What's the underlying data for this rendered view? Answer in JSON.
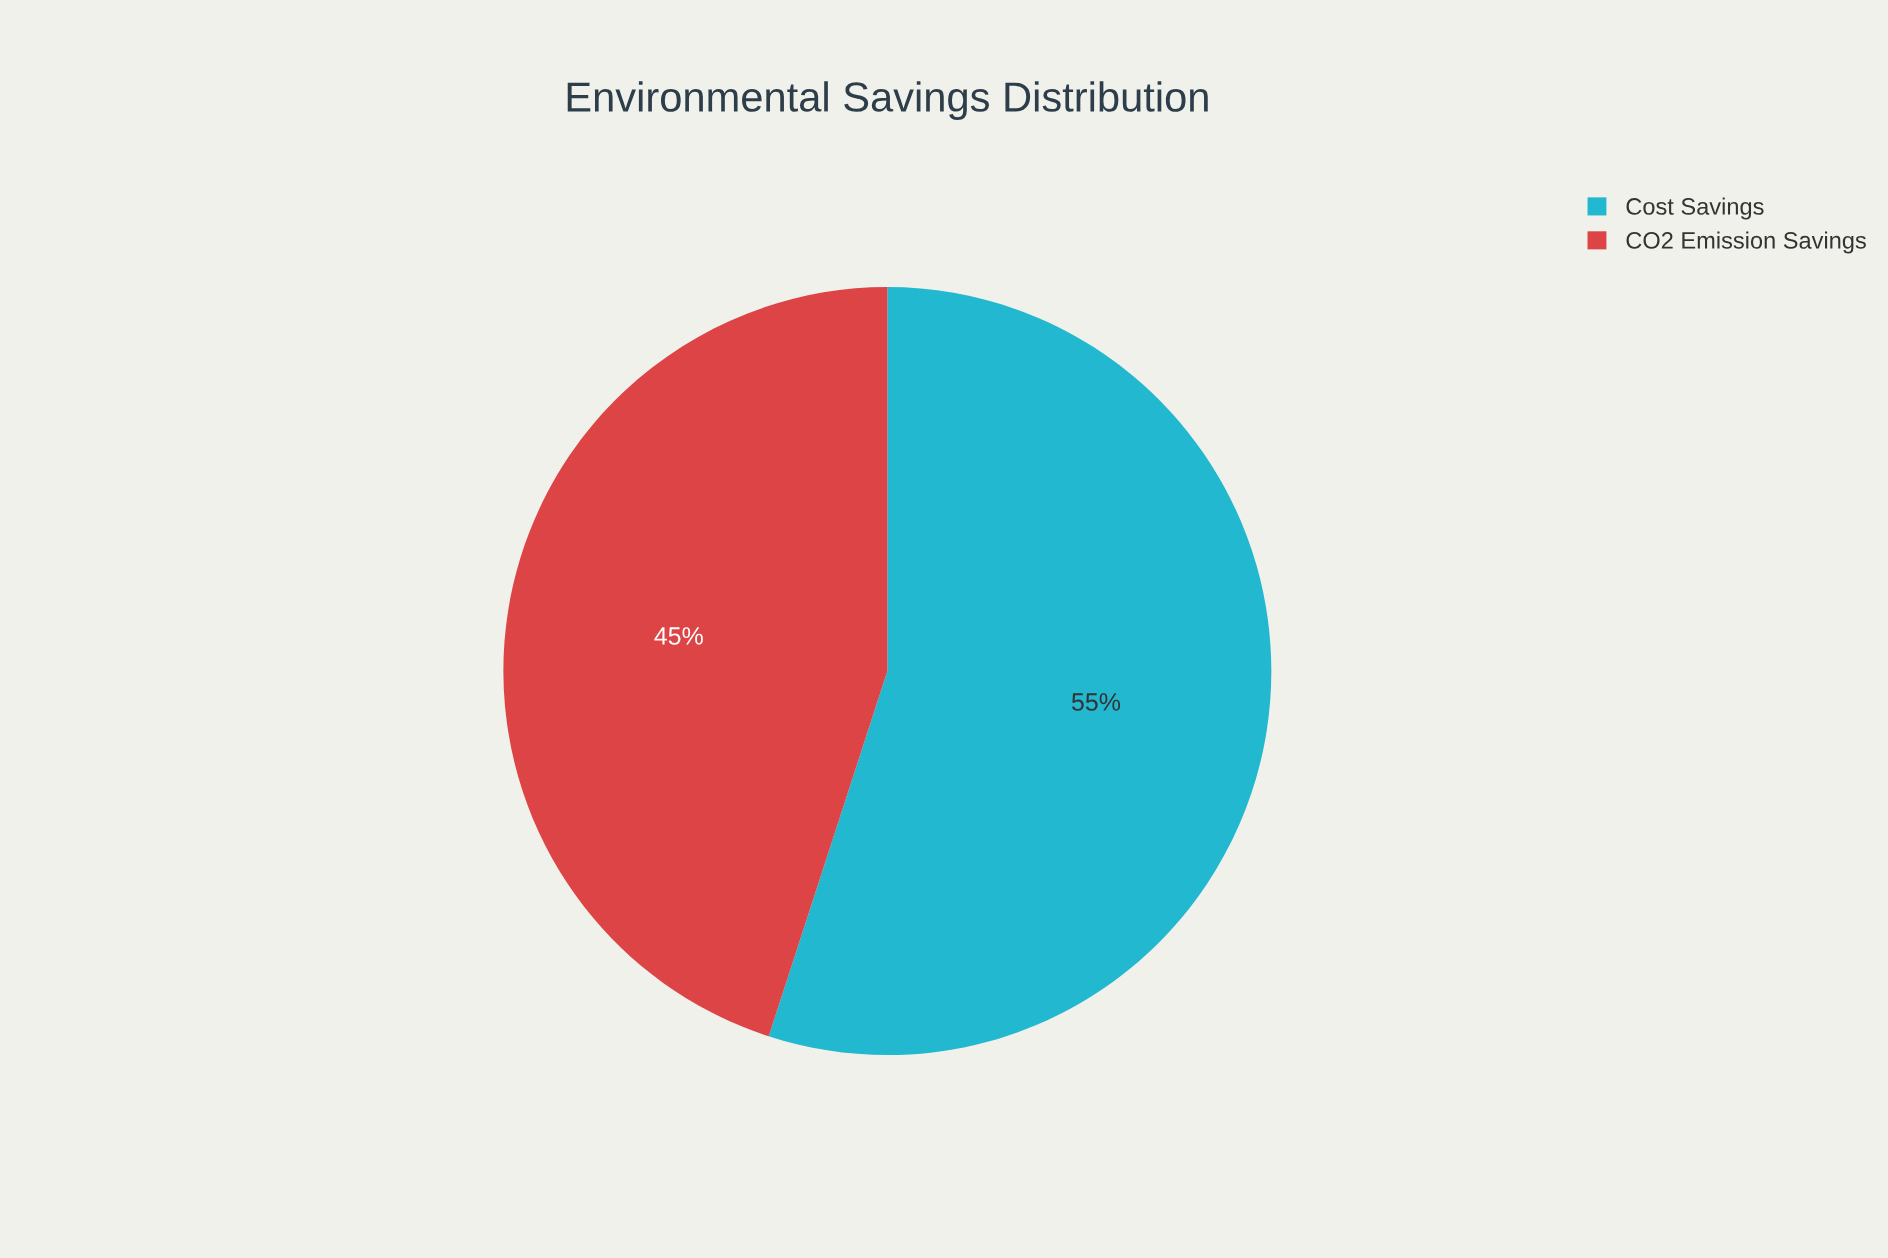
{
  "chart_data": {
    "type": "pie",
    "title": "Environmental Savings Distribution",
    "categories": [
      "Cost Savings",
      "CO2 Emission Savings"
    ],
    "values": [
      55,
      45
    ],
    "colors": [
      "#22b8cf",
      "#dc4446"
    ],
    "value_labels": [
      "55%",
      "45%"
    ],
    "legend": "top right"
  }
}
